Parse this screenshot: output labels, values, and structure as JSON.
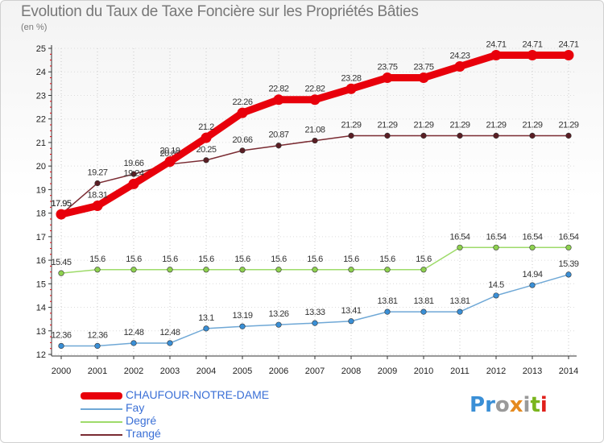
{
  "header": {
    "title": "Evolution du Taux de Taxe Foncière sur les Propriétés Bâties",
    "unit": "(en %)"
  },
  "logo": {
    "text": "Proxiti",
    "colors": [
      "#3a8fd6",
      "#3a8fd6",
      "#9a9a9a",
      "#e58a1f",
      "#9a9a9a",
      "#7ab51d",
      "#e0201b"
    ]
  },
  "chart_data": {
    "type": "line",
    "title": "Evolution du Taux de Taxe Foncière sur les Propriétés Bâties",
    "ylabel": "(en %)",
    "xlabel": "",
    "ylim": [
      12,
      25
    ],
    "yticks": [
      "12",
      "13",
      "14",
      "15",
      "16",
      "17",
      "18",
      "19",
      "20",
      "21",
      "22",
      "23",
      "24",
      "25"
    ],
    "categories": [
      "2000",
      "2001",
      "2002",
      "2003",
      "2004",
      "2005",
      "2006",
      "2007",
      "2008",
      "2009",
      "2010",
      "2011",
      "2012",
      "2013",
      "2014"
    ],
    "series": [
      {
        "name": "CHAUFOUR-NOTRE-DAME",
        "color": "#e8000b",
        "thick": true,
        "values": [
          17.95,
          18.31,
          19.24,
          20.19,
          21.2,
          22.26,
          22.82,
          22.82,
          23.28,
          23.75,
          23.75,
          24.23,
          24.71,
          24.71,
          24.71
        ],
        "labels": [
          "17.95",
          "18.31",
          "19.24",
          "20.19",
          "21.2",
          "22.26",
          "22.82",
          "22.82",
          "23.28",
          "23.75",
          "23.75",
          "24.23",
          "24.71",
          "24.71",
          "24.71"
        ]
      },
      {
        "name": "Fay",
        "color": "#6fa8d6",
        "marker": "#3a8fd6",
        "values": [
          12.36,
          12.36,
          12.48,
          12.48,
          13.1,
          13.19,
          13.26,
          13.33,
          13.41,
          13.81,
          13.81,
          13.81,
          14.5,
          14.94,
          15.39
        ],
        "labels": [
          "12.36",
          "12.36",
          "12.48",
          "12.48",
          "13.1",
          "13.19",
          "13.26",
          "13.33",
          "13.41",
          "13.81",
          "13.81",
          "13.81",
          "14.5",
          "14.94",
          "15.39"
        ]
      },
      {
        "name": "Degré",
        "color": "#9edb6a",
        "marker": "#8ed14f",
        "values": [
          15.45,
          15.6,
          15.6,
          15.6,
          15.6,
          15.6,
          15.6,
          15.6,
          15.6,
          15.6,
          15.6,
          16.54,
          16.54,
          16.54,
          16.54
        ],
        "labels": [
          "15.45",
          "15.6",
          "15.6",
          "15.6",
          "15.6",
          "15.6",
          "15.6",
          "15.6",
          "15.6",
          "15.6",
          "15.6",
          "16.54",
          "16.54",
          "16.54",
          "16.54"
        ]
      },
      {
        "name": "Trangé",
        "color": "#7a2b32",
        "marker": "#5a1e24",
        "values": [
          17.95,
          19.27,
          19.66,
          20.08,
          20.25,
          20.66,
          20.87,
          21.08,
          21.29,
          21.29,
          21.29,
          21.29,
          21.29,
          21.29,
          21.29
        ],
        "labels": [
          "17.95",
          "19.27",
          "19.66",
          "20.08",
          "20.25",
          "20.66",
          "20.87",
          "21.08",
          "21.29",
          "21.29",
          "21.29",
          "21.29",
          "21.29",
          "21.29",
          "21.29"
        ]
      }
    ],
    "legend_position": "bottom-left"
  }
}
